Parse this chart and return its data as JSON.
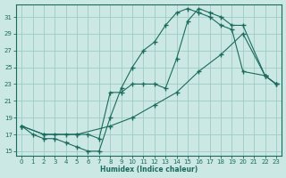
{
  "xlabel": "Humidex (Indice chaleur)",
  "xlim": [
    -0.5,
    23.5
  ],
  "ylim": [
    14.5,
    32.5
  ],
  "xticks": [
    0,
    1,
    2,
    3,
    4,
    5,
    6,
    7,
    8,
    9,
    10,
    11,
    12,
    13,
    14,
    15,
    16,
    17,
    18,
    19,
    20,
    21,
    22,
    23
  ],
  "yticks": [
    15,
    17,
    19,
    21,
    23,
    25,
    27,
    29,
    31
  ],
  "bg_color": "#cce8e4",
  "grid_color": "#9eccc6",
  "line_color": "#1a6b5e",
  "line1_x": [
    0,
    1,
    2,
    3,
    4,
    5,
    6,
    7,
    8,
    9,
    10,
    11,
    12,
    13,
    14,
    15,
    16,
    17,
    18,
    19,
    20,
    22,
    23
  ],
  "line1_y": [
    18,
    17,
    16.5,
    16.5,
    16,
    15.5,
    15,
    15,
    19,
    22.5,
    25,
    27,
    28,
    30,
    31.5,
    32,
    31.5,
    31,
    30,
    29.5,
    24.5,
    24,
    23
  ],
  "line2_x": [
    0,
    2,
    3,
    4,
    5,
    6,
    7,
    8,
    9,
    10,
    11,
    12,
    13,
    14,
    15,
    16,
    17,
    18,
    19,
    20,
    22,
    23
  ],
  "line2_y": [
    18,
    17,
    17,
    17,
    17,
    17,
    16.5,
    22,
    22,
    23,
    23,
    23,
    22.5,
    26,
    30.5,
    32,
    31.5,
    31,
    30,
    30,
    24,
    23
  ],
  "line3_x": [
    0,
    2,
    5,
    8,
    10,
    12,
    14,
    16,
    18,
    20,
    22,
    23
  ],
  "line3_y": [
    18,
    17,
    17,
    18,
    19,
    20.5,
    22,
    24.5,
    26.5,
    29,
    24,
    23
  ]
}
